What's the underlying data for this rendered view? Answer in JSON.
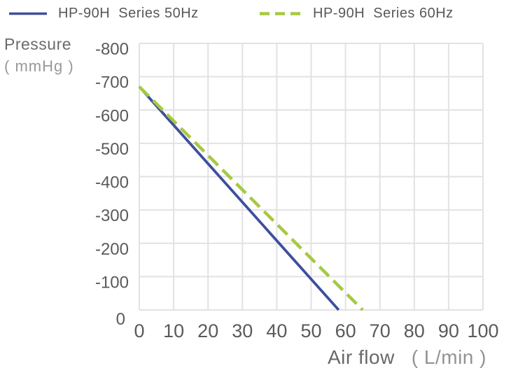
{
  "axes": {
    "y_title": "Pressure",
    "y_unit": "( mmHg )",
    "x_title": "Air flow",
    "x_unit": "( L/min )"
  },
  "chart_data": {
    "type": "line",
    "title": "",
    "xlabel": "Air flow ( L/min )",
    "ylabel": "Pressure ( mmHg )",
    "xlim": [
      0,
      100
    ],
    "ylim": [
      0,
      -800
    ],
    "y_axis_inverted": true,
    "grid": true,
    "legend_position": "top",
    "x_ticks": [
      0,
      10,
      20,
      30,
      40,
      50,
      60,
      70,
      80,
      90,
      100
    ],
    "y_ticks": [
      -800,
      -700,
      -600,
      -500,
      -400,
      -300,
      -200,
      -100,
      0
    ],
    "series": [
      {
        "name": "HP-90H  Series 50Hz",
        "frequency": "50Hz",
        "line_style": "solid",
        "color": "#3d4f9c",
        "points": [
          [
            0,
            -670
          ],
          [
            58,
            0
          ]
        ]
      },
      {
        "name": "HP-90H  Series 60Hz",
        "frequency": "60Hz",
        "line_style": "dashed",
        "color": "#a6c93f",
        "points": [
          [
            0,
            -670
          ],
          [
            65,
            0
          ]
        ]
      }
    ],
    "colors": {
      "grid": "#e2e2e4",
      "tick_text": "#595a5c",
      "background": "#ffffff"
    }
  }
}
